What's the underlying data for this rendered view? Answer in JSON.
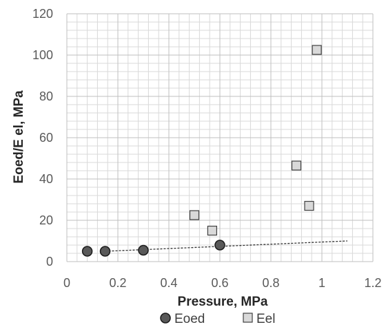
{
  "chart_data": {
    "type": "scatter",
    "xlabel": "Pressure, MPa",
    "ylabel": "Eoed/E el, MPa",
    "xlim": [
      0,
      1.2
    ],
    "ylim": [
      0,
      120
    ],
    "x_ticks": [
      "0",
      "0.2",
      "0.4",
      "0.6",
      "0.8",
      "1",
      "1.2"
    ],
    "y_ticks": [
      "0",
      "20",
      "40",
      "60",
      "80",
      "100",
      "120"
    ],
    "grid": true,
    "legend_position": "bottom",
    "series": [
      {
        "name": "Eoed",
        "marker": "circle",
        "color": "#595959",
        "x": [
          0.08,
          0.15,
          0.3,
          0.6
        ],
        "y": [
          5,
          5,
          5.5,
          8
        ]
      },
      {
        "name": "Eel",
        "marker": "square",
        "color": "#d9d9d9",
        "x": [
          0.5,
          0.57,
          0.9,
          0.95,
          0.98
        ],
        "y": [
          22.5,
          15,
          46.5,
          27,
          102.5
        ]
      }
    ],
    "trendline": {
      "series": "Eoed",
      "style": "dashed",
      "x": [
        0.15,
        1.1
      ],
      "y": [
        5.0,
        10.0
      ]
    }
  }
}
